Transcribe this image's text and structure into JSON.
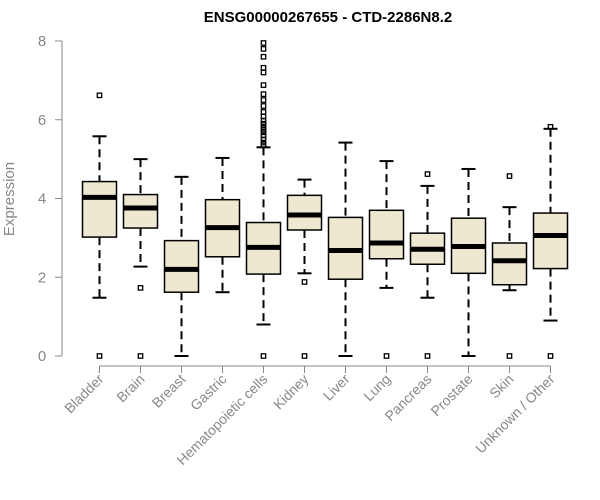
{
  "chart_data": {
    "type": "boxplot",
    "title": "ENSG00000267655 - CTD-2286N8.2",
    "xlabel": "",
    "ylabel": "Expression",
    "ylim": [
      0,
      8
    ],
    "yticks": [
      0,
      2,
      4,
      6,
      8
    ],
    "box_fill": "#efe8d0",
    "categories": [
      "Bladder",
      "Brain",
      "Breast",
      "Gastric",
      "Hematopoietic cells",
      "Kidney",
      "Liver",
      "Lung",
      "Pancreas",
      "Prostate",
      "Skin",
      "Unknown / Other"
    ],
    "boxes": [
      {
        "name": "Bladder",
        "lower_whisker": 1.48,
        "q1": 3.02,
        "median": 4.03,
        "q3": 4.43,
        "upper_whisker": 5.58,
        "outliers": [
          6.62,
          0.0
        ]
      },
      {
        "name": "Brain",
        "lower_whisker": 2.27,
        "q1": 3.25,
        "median": 3.76,
        "q3": 4.1,
        "upper_whisker": 5.0,
        "outliers": [
          1.73,
          0.0
        ]
      },
      {
        "name": "Breast",
        "lower_whisker": 0.0,
        "q1": 1.62,
        "median": 2.2,
        "q3": 2.93,
        "upper_whisker": 4.55,
        "outliers": []
      },
      {
        "name": "Gastric",
        "lower_whisker": 1.62,
        "q1": 2.52,
        "median": 3.26,
        "q3": 3.97,
        "upper_whisker": 5.03,
        "outliers": []
      },
      {
        "name": "Hematopoietic cells",
        "lower_whisker": 0.8,
        "q1": 2.08,
        "median": 2.76,
        "q3": 3.39,
        "upper_whisker": 5.3,
        "outliers": [
          7.95,
          7.8,
          7.6,
          7.32,
          7.2,
          6.88,
          6.65,
          6.5,
          6.35,
          6.2,
          6.08,
          5.98,
          5.9,
          5.82,
          5.75,
          5.68,
          5.6,
          5.5,
          5.42,
          5.35,
          0.0
        ]
      },
      {
        "name": "Kidney",
        "lower_whisker": 2.1,
        "q1": 3.2,
        "median": 3.58,
        "q3": 4.08,
        "upper_whisker": 4.48,
        "outliers": [
          1.88,
          0.0
        ]
      },
      {
        "name": "Liver",
        "lower_whisker": 0.0,
        "q1": 1.95,
        "median": 2.68,
        "q3": 3.52,
        "upper_whisker": 5.42,
        "outliers": []
      },
      {
        "name": "Lung",
        "lower_whisker": 1.73,
        "q1": 2.47,
        "median": 2.87,
        "q3": 3.7,
        "upper_whisker": 4.95,
        "outliers": [
          0.0
        ]
      },
      {
        "name": "Pancreas",
        "lower_whisker": 1.48,
        "q1": 2.33,
        "median": 2.71,
        "q3": 3.12,
        "upper_whisker": 4.32,
        "outliers": [
          4.62,
          0.0
        ]
      },
      {
        "name": "Prostate",
        "lower_whisker": 0.0,
        "q1": 2.1,
        "median": 2.78,
        "q3": 3.5,
        "upper_whisker": 4.75,
        "outliers": []
      },
      {
        "name": "Skin",
        "lower_whisker": 1.67,
        "q1": 1.81,
        "median": 2.42,
        "q3": 2.87,
        "upper_whisker": 3.78,
        "outliers": [
          4.57,
          0.0
        ]
      },
      {
        "name": "Unknown / Other",
        "lower_whisker": 0.9,
        "q1": 2.22,
        "median": 3.06,
        "q3": 3.63,
        "upper_whisker": 5.77,
        "outliers": [
          5.82,
          0.0
        ]
      }
    ]
  }
}
